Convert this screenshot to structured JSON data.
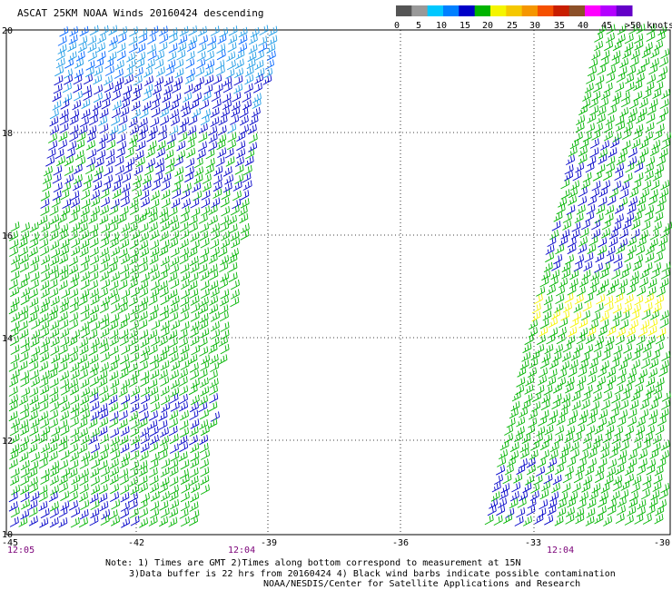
{
  "title": "ASCAT 25KM NOAA Winds 20160424 descending",
  "legend": {
    "colors": [
      "#555555",
      "#999999",
      "#00c8ff",
      "#0080ff",
      "#0000c8",
      "#00b400",
      "#f5f500",
      "#f5c800",
      "#f59600",
      "#f55000",
      "#c81e00",
      "#8c5028",
      "#ff00ff",
      "#b400ff",
      "#6400c8"
    ],
    "labels": [
      "0",
      "5",
      "10",
      "15",
      "20",
      "25",
      "30",
      "35",
      "40",
      "45",
      ">50 knots"
    ]
  },
  "axes": {
    "lat_labels": [
      "20",
      "18",
      "16",
      "14",
      "12",
      "10"
    ],
    "lon_labels": [
      "-45",
      "-42",
      "-39",
      "-36",
      "-33",
      "-30"
    ]
  },
  "swaths": [
    {
      "time": "12:05",
      "color": "#7a0078"
    },
    {
      "time": "12:04",
      "color": "#7a0078"
    },
    {
      "time": "12:04",
      "color": "#7a0078"
    }
  ],
  "notes": {
    "line1": "Note: 1) Times are GMT 2)Times along bottom correspond to measurement at 15N",
    "line2": "3)Data buffer is 22 hrs from 20160424 4) Black wind barbs indicate possible contamination",
    "line3": "NOAA/NESDIS/Center for Satellite Applications and Research"
  }
}
